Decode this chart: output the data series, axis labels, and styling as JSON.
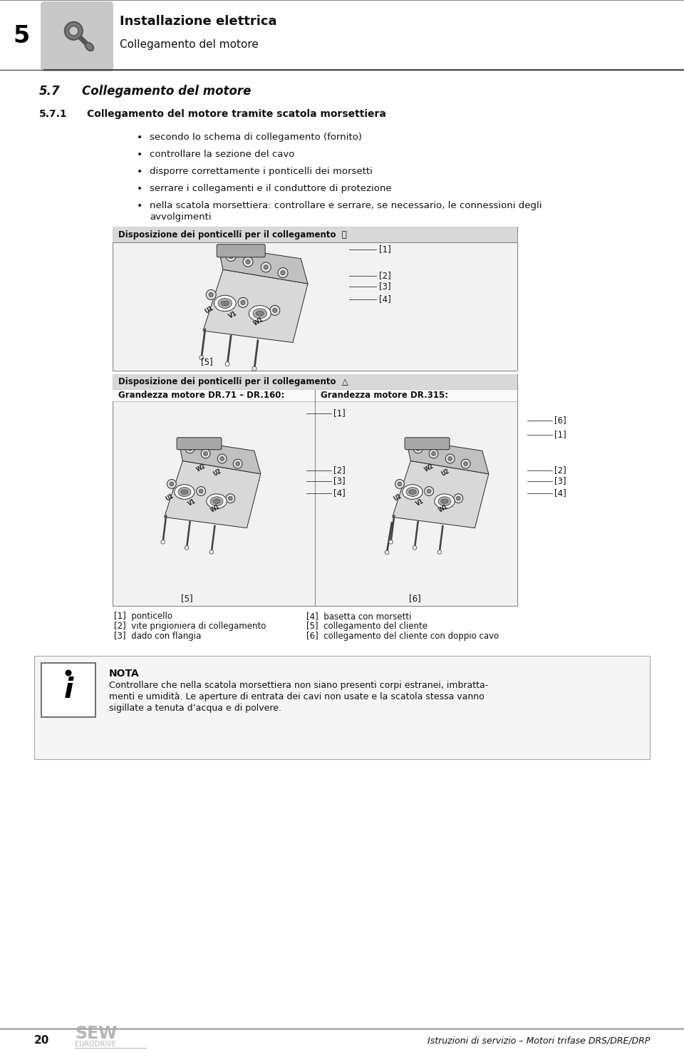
{
  "page_number": "20",
  "chapter_number": "5",
  "header_title": "Installazione elettrica",
  "header_subtitle": "Collegamento del motore",
  "footer_text": "Istruzioni di servizio – Motori trifase DRS/DRE/DRP",
  "section_57": "5.7",
  "section_57_title": "Collegamento del motore",
  "section_571": "5.7.1",
  "section_571_title": "Collegamento del motore tramite scatola morsettiera",
  "bullets": [
    "secondo lo schema di collegamento (fornito)",
    "controllare la sezione del cavo",
    "disporre correttamente i ponticelli dei morsetti",
    "serrare i collegamenti e il conduttore di protezione",
    "nella scatola morsettiera: controllare e serrare, se necessario, le connessioni degli avvolgimenti"
  ],
  "box1_title": "Disposizione dei ponticelli per il collegamento ⨉",
  "box2_title": "Disposizione dei ponticelli per il collegamento △",
  "box2_left_label": "Grandezza motore DR.71 – DR.160:",
  "box2_right_label": "Grandezza motore DR.315:",
  "legend_col1": [
    "[1]  ponticello",
    "[2]  vite prigioniera di collegamento",
    "[3]  dado con flangia"
  ],
  "legend_col2": [
    "[4]  basetta con morsetti",
    "[5]  collegamento del cliente",
    "[6]  collegamento del cliente con doppio cavo"
  ],
  "nota_title": "NOTA",
  "nota_text_lines": [
    "Controllare che nella scatola morsettiera non siano presenti corpi estranei, imbratta-",
    "menti e umidità. Le aperture di entrata dei cavi non usate e la scatola stessa vanno",
    "sigillate a tenuta d’acqua e di polvere."
  ],
  "bg_color": "#ffffff",
  "header_bg": "#cccccc",
  "box_title_bg": "#d8d8d8",
  "box_border": "#888888",
  "nota_bg": "#f0f0f0"
}
